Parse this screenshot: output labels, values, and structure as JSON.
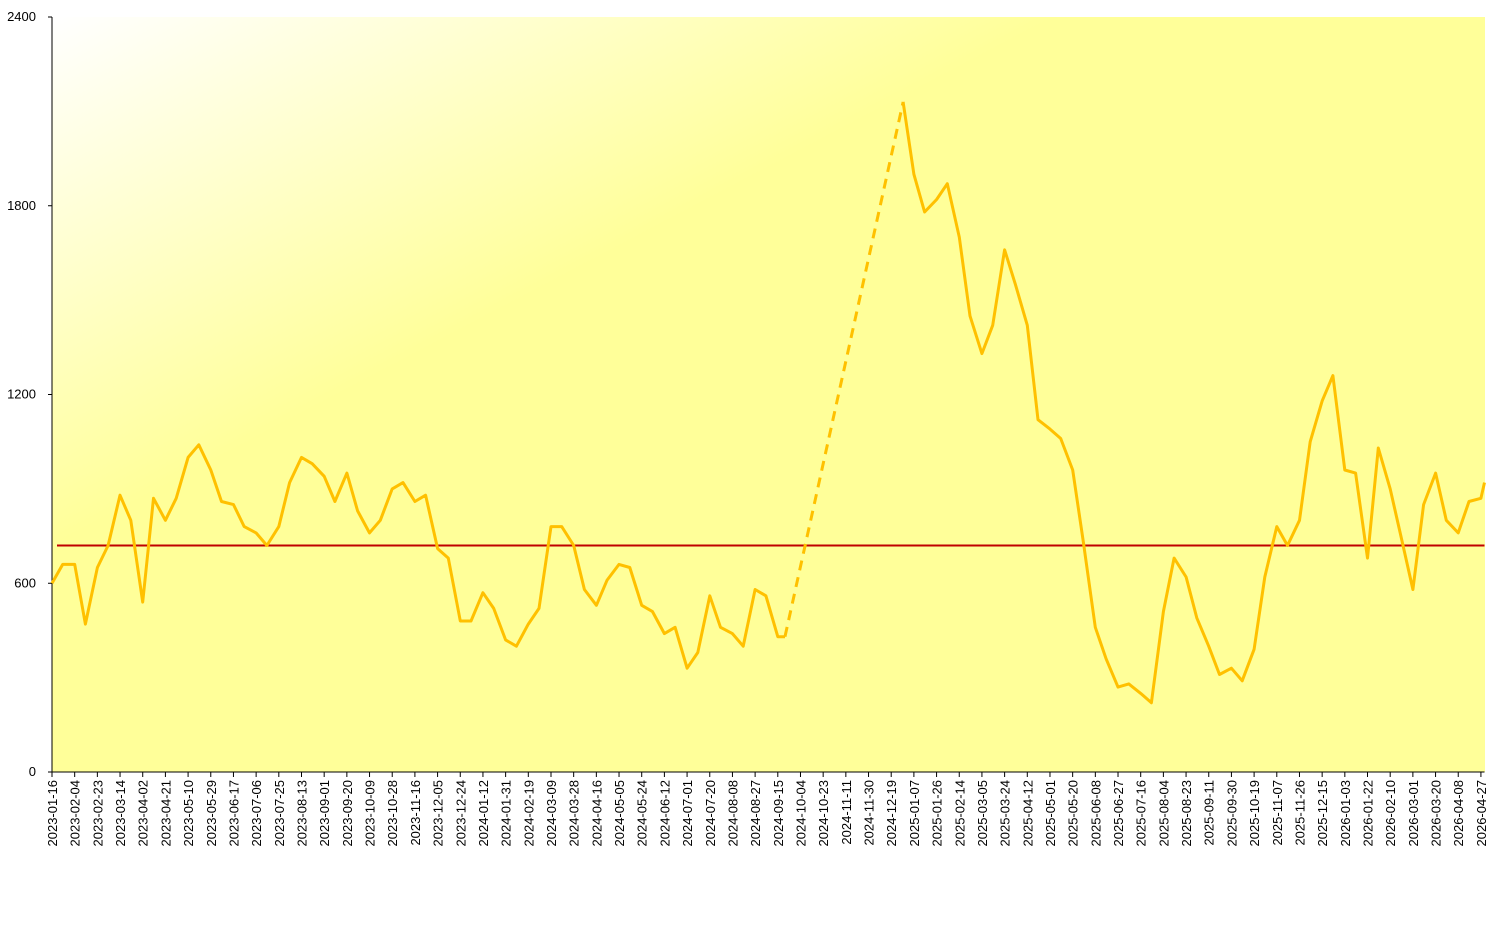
{
  "chart_data": {
    "type": "line",
    "x": [
      "2023-01-16",
      "2023-01-25",
      "2023-02-04",
      "2023-02-13",
      "2023-02-23",
      "2023-03-04",
      "2023-03-14",
      "2023-03-23",
      "2023-04-02",
      "2023-04-11",
      "2023-04-21",
      "2023-04-30",
      "2023-05-10",
      "2023-05-19",
      "2023-05-29",
      "2023-06-07",
      "2023-06-17",
      "2023-06-26",
      "2023-07-06",
      "2023-07-15",
      "2023-07-25",
      "2023-08-03",
      "2023-08-13",
      "2023-08-22",
      "2023-09-01",
      "2023-09-10",
      "2023-09-20",
      "2023-09-29",
      "2023-10-09",
      "2023-10-18",
      "2023-10-28",
      "2023-11-06",
      "2023-11-16",
      "2023-11-25",
      "2023-12-05",
      "2023-12-14",
      "2023-12-24",
      "2024-01-02",
      "2024-01-12",
      "2024-01-21",
      "2024-01-31",
      "2024-02-09",
      "2024-02-19",
      "2024-02-28",
      "2024-03-09",
      "2024-03-18",
      "2024-03-28",
      "2024-04-06",
      "2024-04-16",
      "2024-04-25",
      "2024-05-05",
      "2024-05-14",
      "2024-05-24",
      "2024-06-02",
      "2024-06-12",
      "2024-06-21",
      "2024-07-01",
      "2024-07-10",
      "2024-07-20",
      "2024-07-29",
      "2024-08-08",
      "2024-08-17",
      "2024-08-27",
      "2024-09-05",
      "2024-09-15",
      "2024-09-21",
      "2024-11-11",
      "2024-12-29",
      "2025-01-07",
      "2025-01-16",
      "2025-01-26",
      "2025-02-04",
      "2025-02-14",
      "2025-02-23",
      "2025-03-05",
      "2025-03-14",
      "2025-03-24",
      "2025-04-02",
      "2025-04-12",
      "2025-04-21",
      "2025-05-01",
      "2025-05-10",
      "2025-05-20",
      "2025-05-29",
      "2025-06-08",
      "2025-06-17",
      "2025-06-27",
      "2025-07-06",
      "2025-07-16",
      "2025-07-25",
      "2025-08-04",
      "2025-08-13",
      "2025-08-23",
      "2025-09-01",
      "2025-09-11",
      "2025-09-20",
      "2025-09-30",
      "2025-10-09",
      "2025-10-19",
      "2025-10-28",
      "2025-11-07",
      "2025-11-16",
      "2025-11-26",
      "2025-12-05",
      "2025-12-15",
      "2025-12-24",
      "2026-01-03",
      "2026-01-12",
      "2026-01-22",
      "2026-01-31",
      "2026-02-10",
      "2026-02-19",
      "2026-03-01",
      "2026-03-10",
      "2026-03-20",
      "2026-03-29",
      "2026-04-08",
      "2026-04-17",
      "2026-04-27",
      "2026-04-30"
    ],
    "series": [
      {
        "color": "#ffc000",
        "values": [
          600,
          660,
          660,
          470,
          650,
          720,
          880,
          800,
          540,
          870,
          800,
          870,
          1000,
          1040,
          960,
          860,
          850,
          780,
          760,
          720,
          780,
          920,
          1000,
          980,
          940,
          860,
          950,
          830,
          760,
          800,
          900,
          920,
          860,
          880,
          710,
          680,
          480,
          480,
          570,
          520,
          420,
          400,
          470,
          520,
          780,
          780,
          720,
          580,
          530,
          610,
          660,
          650,
          530,
          510,
          440,
          460,
          330,
          380,
          560,
          460,
          440,
          400,
          580,
          560,
          430,
          430,
          null,
          2130,
          1900,
          1780,
          1820,
          1870,
          1700,
          1450,
          1330,
          1420,
          1660,
          1550,
          1420,
          1120,
          1090,
          1060,
          960,
          730,
          460,
          360,
          270,
          280,
          250,
          220,
          510,
          680,
          620,
          490,
          400,
          310,
          330,
          290,
          390,
          620,
          780,
          720,
          800,
          1050,
          1180,
          1260,
          960,
          950,
          680,
          1030,
          900,
          750,
          580,
          850,
          950,
          800,
          760,
          860,
          870,
          920
        ]
      }
    ],
    "gap_style": "dashed",
    "reference_line": {
      "value": 720,
      "color": "#c00000"
    },
    "xlim": [
      "2023-01-16",
      "2026-04-30"
    ],
    "xticks": [
      "2023-01-16",
      "2023-02-04",
      "2023-02-23",
      "2023-03-14",
      "2023-04-02",
      "2023-04-21",
      "2023-05-10",
      "2023-05-29",
      "2023-06-17",
      "2023-07-06",
      "2023-07-25",
      "2023-08-13",
      "2023-09-01",
      "2023-09-20",
      "2023-10-09",
      "2023-10-28",
      "2023-11-16",
      "2023-12-05",
      "2023-12-24",
      "2024-01-12",
      "2024-01-31",
      "2024-02-19",
      "2024-03-09",
      "2024-03-28",
      "2024-04-16",
      "2024-05-05",
      "2024-05-24",
      "2024-06-12",
      "2024-07-01",
      "2024-07-20",
      "2024-08-08",
      "2024-08-27",
      "2024-09-15",
      "2024-10-04",
      "2024-10-23",
      "2024-11-11",
      "2024-11-30",
      "2024-12-19",
      "2025-01-07",
      "2025-01-26",
      "2025-02-14",
      "2025-03-05",
      "2025-03-24",
      "2025-04-12",
      "2025-05-01",
      "2025-05-20",
      "2025-06-08",
      "2025-06-27",
      "2025-07-16",
      "2025-08-04",
      "2025-08-23",
      "2025-09-11",
      "2025-09-30",
      "2025-10-19",
      "2025-11-07",
      "2025-11-26",
      "2025-12-15",
      "2026-01-03",
      "2026-01-22",
      "2026-02-10",
      "2026-03-01",
      "2026-03-20",
      "2026-04-08",
      "2026-04-27"
    ],
    "ylim": [
      0,
      2400
    ],
    "yticks": [
      0,
      600,
      1200,
      1800,
      2400
    ]
  }
}
